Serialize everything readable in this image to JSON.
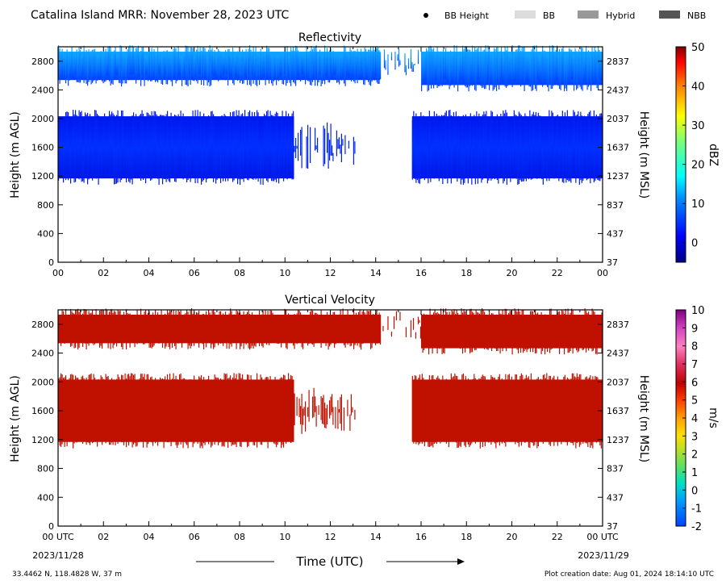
{
  "header": {
    "title": "Catalina Island MRR:  November 28, 2023 UTC",
    "legend": [
      {
        "label": "BB Height",
        "marker": "dot",
        "color": "#000000"
      },
      {
        "label": "BB",
        "marker": "rect",
        "color": "#dcdcdc"
      },
      {
        "label": "Hybrid",
        "marker": "rect",
        "color": "#999999"
      },
      {
        "label": "NBB",
        "marker": "rect",
        "color": "#555555"
      }
    ]
  },
  "footer": {
    "location": "33.4462 N, 118.4828 W, 37 m",
    "creation": "Plot creation date: Aug 01, 2024 18:14:10 UTC",
    "xlabel": "Time (UTC)",
    "start_date": "2023/11/28",
    "end_date": "2023/11/29"
  },
  "chart_data": [
    {
      "type": "heatmap",
      "title": "Reflectivity",
      "ylabel": "Height (m AGL)",
      "ylabel_right": "Height (m MSL)",
      "xlim": [
        0,
        24
      ],
      "ylim": [
        0,
        3000
      ],
      "xticks": [
        "00",
        "02",
        "04",
        "06",
        "08",
        "10",
        "12",
        "14",
        "16",
        "18",
        "20",
        "22",
        "00"
      ],
      "yticks": [
        0,
        400,
        800,
        1200,
        1600,
        2000,
        2400,
        2800
      ],
      "yticks_right": [
        "37",
        "437",
        "837",
        "1237",
        "1637",
        "2037",
        "2437",
        "2837"
      ],
      "colorbar": {
        "label": "dBZ",
        "min": -5,
        "max": 50,
        "ticks": [
          0,
          10,
          20,
          30,
          40,
          50
        ]
      },
      "layers": [
        {
          "name": "upper",
          "time_ranges": [
            [
              0,
              14.2
            ],
            [
              14.2,
              16
            ],
            [
              16,
              24
            ]
          ],
          "height_ranges": [
            [
              2470,
              3000
            ],
            [
              2600,
              3000
            ],
            [
              2400,
              3000
            ]
          ],
          "value": 2
        },
        {
          "name": "lower",
          "time_ranges": [
            [
              0,
              10.4
            ],
            [
              10.4,
              12.1
            ],
            [
              12.1,
              13.1
            ],
            [
              15.6,
              24
            ]
          ],
          "height_ranges": [
            [
              1100,
              2100
            ],
            [
              1250,
              1950
            ],
            [
              1300,
              1850
            ],
            [
              1100,
              2100
            ]
          ],
          "value": 0
        }
      ],
      "grid": false
    },
    {
      "type": "heatmap",
      "title": "Vertical Velocity",
      "ylabel": "Height (m AGL)",
      "ylabel_right": "Height (m MSL)",
      "xlim": [
        0,
        24
      ],
      "ylim": [
        0,
        3000
      ],
      "xticks": [
        "00 UTC",
        "02",
        "04",
        "06",
        "08",
        "10",
        "12",
        "14",
        "16",
        "18",
        "20",
        "22",
        "00 UTC"
      ],
      "yticks": [
        0,
        400,
        800,
        1200,
        1600,
        2000,
        2400,
        2800
      ],
      "yticks_right": [
        "37",
        "437",
        "837",
        "1237",
        "1637",
        "2037",
        "2437",
        "2837"
      ],
      "colorbar": {
        "label": "m/s",
        "min": -2,
        "max": 10,
        "ticks": [
          -2,
          -1,
          0,
          1,
          2,
          3,
          4,
          5,
          6,
          7,
          8,
          9,
          10
        ]
      },
      "layers": [
        {
          "name": "upper",
          "time_ranges": [
            [
              0,
              14.2
            ],
            [
              14.2,
              16
            ],
            [
              16,
              24
            ]
          ],
          "height_ranges": [
            [
              2470,
              3000
            ],
            [
              2600,
              3000
            ],
            [
              2400,
              3000
            ]
          ],
          "value": 6
        },
        {
          "name": "lower",
          "time_ranges": [
            [
              0,
              10.4
            ],
            [
              10.4,
              12.1
            ],
            [
              12.1,
              13.1
            ],
            [
              15.6,
              24
            ]
          ],
          "height_ranges": [
            [
              1100,
              2100
            ],
            [
              1250,
              1950
            ],
            [
              1300,
              1850
            ],
            [
              1100,
              2100
            ]
          ],
          "value": 6
        }
      ],
      "grid": false
    }
  ]
}
